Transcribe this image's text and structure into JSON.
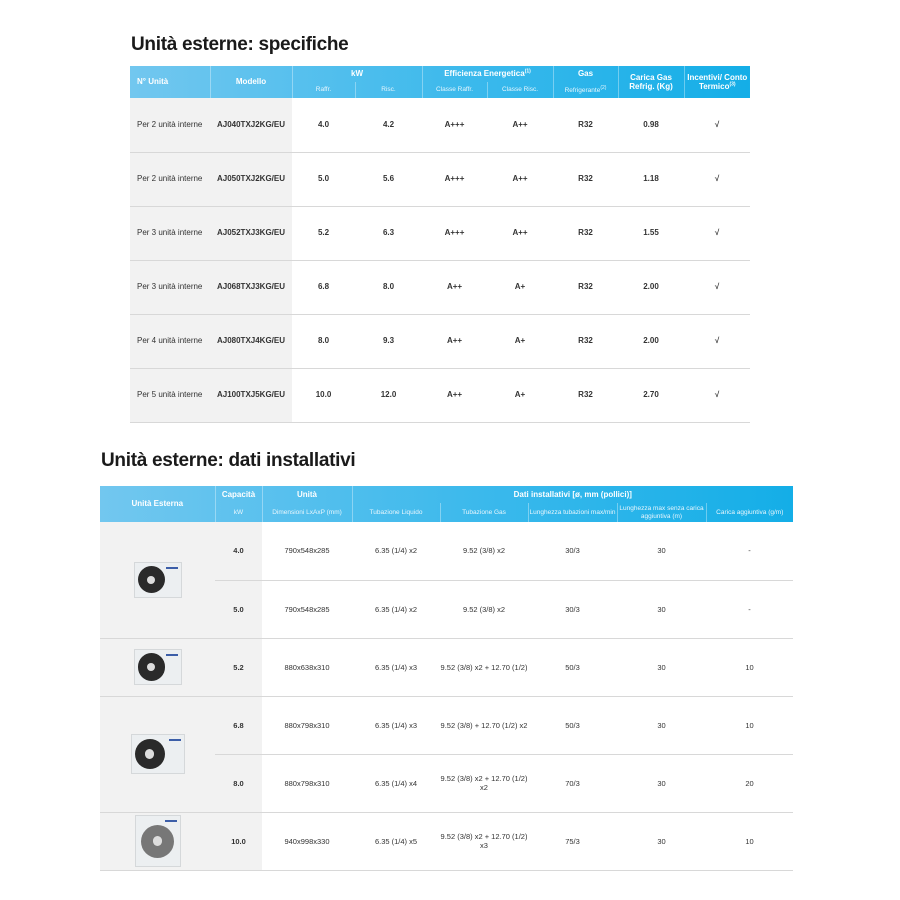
{
  "spec": {
    "title": "Unità esterne: specifiche",
    "headers": {
      "n_unita": "N° Unità",
      "modello": "Modello",
      "kw": "kW",
      "raff": "Raffr.",
      "risc": "Risc.",
      "efficienza": "Efficienza Energetica",
      "efficienza_sup": "(1)",
      "classe_raff": "Classe Raffr.",
      "classe_risc": "Classe Risc.",
      "gas": "Gas",
      "refrigerante": "Refrigerante",
      "refrigerante_sup": "(2)",
      "carica": "Carica Gas Refrig. (Kg)",
      "incentivi": "Incentivi/ Conto Termico",
      "incentivi_sup": "(3)"
    },
    "rows": [
      {
        "unita": "Per 2 unità interne",
        "modello": "AJ040TXJ2KG/EU",
        "raff": "4.0",
        "risc": "4.2",
        "cl_raff": "A+++",
        "cl_risc": "A++",
        "gas": "R32",
        "carica": "0.98",
        "incentivi": "√"
      },
      {
        "unita": "Per 2 unità interne",
        "modello": "AJ050TXJ2KG/EU",
        "raff": "5.0",
        "risc": "5.6",
        "cl_raff": "A+++",
        "cl_risc": "A++",
        "gas": "R32",
        "carica": "1.18",
        "incentivi": "√"
      },
      {
        "unita": "Per 3 unità interne",
        "modello": "AJ052TXJ3KG/EU",
        "raff": "5.2",
        "risc": "6.3",
        "cl_raff": "A+++",
        "cl_risc": "A++",
        "gas": "R32",
        "carica": "1.55",
        "incentivi": "√"
      },
      {
        "unita": "Per 3 unità interne",
        "modello": "AJ068TXJ3KG/EU",
        "raff": "6.8",
        "risc": "8.0",
        "cl_raff": "A++",
        "cl_risc": "A+",
        "gas": "R32",
        "carica": "2.00",
        "incentivi": "√"
      },
      {
        "unita": "Per 4 unità interne",
        "modello": "AJ080TXJ4KG/EU",
        "raff": "8.0",
        "risc": "9.3",
        "cl_raff": "A++",
        "cl_risc": "A+",
        "gas": "R32",
        "carica": "2.00",
        "incentivi": "√"
      },
      {
        "unita": "Per 5 unità interne",
        "modello": "AJ100TXJ5KG/EU",
        "raff": "10.0",
        "risc": "12.0",
        "cl_raff": "A++",
        "cl_risc": "A+",
        "gas": "R32",
        "carica": "2.70",
        "incentivi": "√"
      }
    ]
  },
  "install": {
    "title": "Unità esterne: dati installativi",
    "headers": {
      "unita_esterna": "Unità Esterna",
      "capacita": "Capacità",
      "kw": "kW",
      "unita": "Unità",
      "dimensioni": "Dimensioni LxAxP (mm)",
      "dati": "Dati installativi [ø, mm (pollici)]",
      "liquido": "Tubazione Liquido",
      "gas": "Tubazione Gas",
      "lunghezza": "Lunghezza tubazioni max/min",
      "lunghezza_max": "Lunghezza max senza carica aggiuntiva (m)",
      "carica": "Carica aggiuntiva (g/m)"
    },
    "images": [
      {
        "icon": "outdoor-unit-small",
        "rows": 2
      },
      {
        "icon": "outdoor-unit-small",
        "rows": 1
      },
      {
        "icon": "outdoor-unit-medium",
        "rows": 2
      },
      {
        "icon": "outdoor-unit-large",
        "rows": 1
      }
    ],
    "rows": [
      {
        "kw": "4.0",
        "dim": "790x548x285",
        "liquido": "6.35 (1/4) x2",
        "gas": "9.52 (3/8) x2",
        "lung": "30/3",
        "lung_max": "30",
        "carica": "-"
      },
      {
        "kw": "5.0",
        "dim": "790x548x285",
        "liquido": "6.35 (1/4) x2",
        "gas": "9.52 (3/8) x2",
        "lung": "30/3",
        "lung_max": "30",
        "carica": "-"
      },
      {
        "kw": "5.2",
        "dim": "880x638x310",
        "liquido": "6.35 (1/4) x3",
        "gas": "9.52 (3/8) x2 + 12.70 (1/2)",
        "lung": "50/3",
        "lung_max": "30",
        "carica": "10"
      },
      {
        "kw": "6.8",
        "dim": "880x798x310",
        "liquido": "6.35 (1/4) x3",
        "gas": "9.52 (3/8) + 12.70 (1/2) x2",
        "lung": "50/3",
        "lung_max": "30",
        "carica": "10"
      },
      {
        "kw": "8.0",
        "dim": "880x798x310",
        "liquido": "6.35 (1/4) x4",
        "gas": "9.52 (3/8) x2 + 12.70 (1/2) x2",
        "lung": "70/3",
        "lung_max": "30",
        "carica": "20"
      },
      {
        "kw": "10.0",
        "dim": "940x998x330",
        "liquido": "6.35 (1/4) x5",
        "gas": "9.52 (3/8) x2 + 12.70 (1/2) x3",
        "lung": "75/3",
        "lung_max": "30",
        "carica": "10"
      }
    ]
  }
}
